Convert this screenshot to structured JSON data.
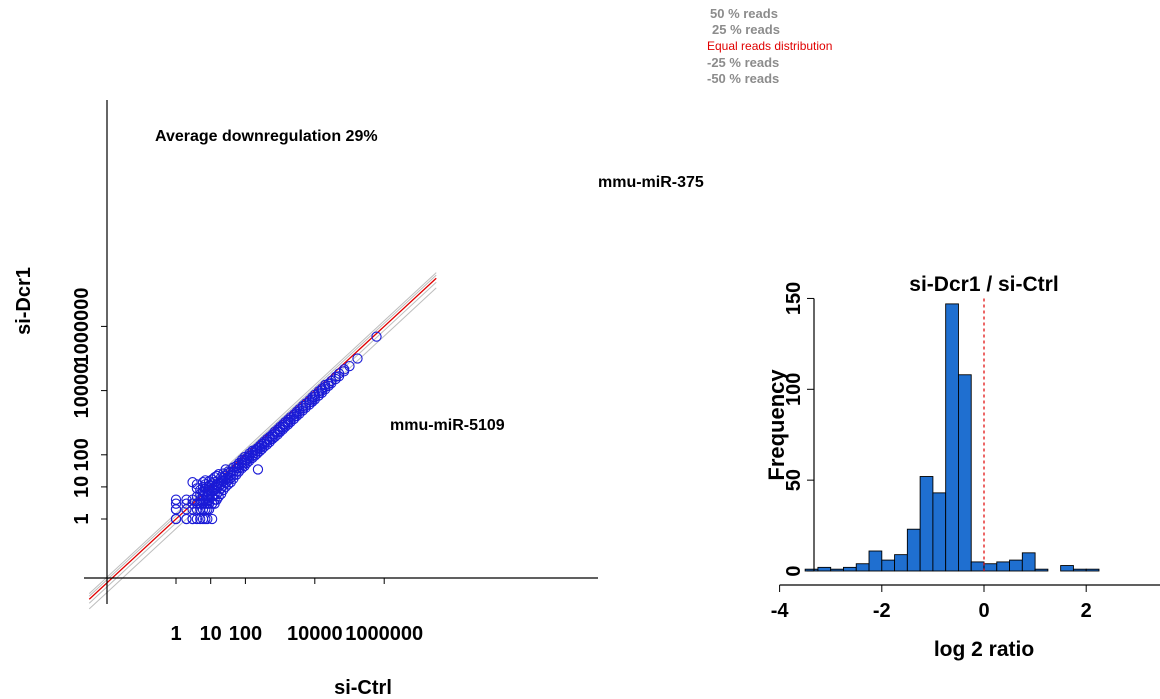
{
  "chart_data": [
    {
      "type": "scatter",
      "scale": "log10",
      "xlabel": "si-Ctrl",
      "ylabel": "si-Dcr1",
      "x_ticks": [
        1,
        10,
        100,
        10000,
        1000000
      ],
      "x_tick_labels": [
        "1",
        "10",
        "100",
        "10000",
        "1000000"
      ],
      "y_ticks": [
        1,
        10,
        100,
        10000,
        1000000
      ],
      "y_tick_labels": [
        "1",
        "10",
        "100",
        "10000",
        "1000000"
      ],
      "xlim": [
        0.03,
        5000000
      ],
      "ylim": [
        0.03,
        5000000
      ],
      "annotation": "Average downregulation 29%",
      "labels": [
        {
          "text": "mmu-miR-375",
          "x": 450000,
          "y": 280000
        },
        {
          "text": "mmu-miR-5109",
          "x": 500,
          "y": 35
        }
      ],
      "reference_lines": [
        {
          "name": "50 % reads",
          "ratio": 1.5,
          "color": "#bdbdbd"
        },
        {
          "name": "25 % reads",
          "ratio": 1.25,
          "color": "#bdbdbd"
        },
        {
          "name": "Equal reads distribution",
          "ratio": 1.0,
          "color": "#e00000"
        },
        {
          "name": "-25 % reads",
          "ratio": 0.75,
          "color": "#bdbdbd"
        },
        {
          "name": "-50 % reads",
          "ratio": 0.5,
          "color": "#bdbdbd"
        }
      ],
      "points": [
        [
          1,
          1
        ],
        [
          1,
          2
        ],
        [
          1,
          3
        ],
        [
          1,
          4
        ],
        [
          1,
          1
        ],
        [
          1,
          2
        ],
        [
          2,
          1
        ],
        [
          2,
          2
        ],
        [
          2,
          3
        ],
        [
          2,
          4
        ],
        [
          2,
          1
        ],
        [
          3,
          1
        ],
        [
          3,
          2
        ],
        [
          3,
          3
        ],
        [
          3,
          4
        ],
        [
          3,
          14
        ],
        [
          3,
          1
        ],
        [
          4,
          1
        ],
        [
          4,
          2
        ],
        [
          4,
          3
        ],
        [
          4,
          5
        ],
        [
          4,
          9
        ],
        [
          4,
          12
        ],
        [
          5,
          1
        ],
        [
          5,
          2
        ],
        [
          5,
          3
        ],
        [
          5,
          4
        ],
        [
          5,
          6
        ],
        [
          5,
          8
        ],
        [
          6,
          1
        ],
        [
          6,
          2
        ],
        [
          6,
          3
        ],
        [
          6,
          4
        ],
        [
          6,
          5
        ],
        [
          6,
          7
        ],
        [
          6,
          10
        ],
        [
          6,
          14
        ],
        [
          7,
          1
        ],
        [
          7,
          2
        ],
        [
          7,
          3
        ],
        [
          7,
          4
        ],
        [
          7,
          6
        ],
        [
          7,
          9
        ],
        [
          7,
          12
        ],
        [
          7,
          16
        ],
        [
          8,
          1
        ],
        [
          8,
          2
        ],
        [
          8,
          3
        ],
        [
          8,
          5
        ],
        [
          8,
          7
        ],
        [
          8,
          10
        ],
        [
          9,
          2
        ],
        [
          9,
          3
        ],
        [
          9,
          4
        ],
        [
          9,
          6
        ],
        [
          9,
          8
        ],
        [
          9,
          11
        ],
        [
          9,
          15
        ],
        [
          11,
          1
        ],
        [
          11,
          3
        ],
        [
          11,
          5
        ],
        [
          11,
          7
        ],
        [
          11,
          9
        ],
        [
          11,
          13
        ],
        [
          11,
          17
        ],
        [
          13,
          3
        ],
        [
          13,
          4
        ],
        [
          13,
          6
        ],
        [
          13,
          8
        ],
        [
          13,
          10
        ],
        [
          13,
          14
        ],
        [
          13,
          20
        ],
        [
          15,
          4
        ],
        [
          15,
          6
        ],
        [
          15,
          9
        ],
        [
          15,
          12
        ],
        [
          15,
          22
        ],
        [
          17,
          5
        ],
        [
          17,
          7
        ],
        [
          17,
          10
        ],
        [
          17,
          13
        ],
        [
          17,
          25
        ],
        [
          20,
          6
        ],
        [
          20,
          9
        ],
        [
          20,
          12
        ],
        [
          20,
          16
        ],
        [
          20,
          20
        ],
        [
          23,
          8
        ],
        [
          23,
          11
        ],
        [
          23,
          15
        ],
        [
          23,
          19
        ],
        [
          23,
          26
        ],
        [
          27,
          10
        ],
        [
          27,
          13
        ],
        [
          27,
          17
        ],
        [
          27,
          22
        ],
        [
          27,
          35
        ],
        [
          32,
          12
        ],
        [
          32,
          16
        ],
        [
          32,
          20
        ],
        [
          32,
          26
        ],
        [
          32,
          30
        ],
        [
          38,
          14
        ],
        [
          38,
          19
        ],
        [
          38,
          24
        ],
        [
          38,
          30
        ],
        [
          45,
          18
        ],
        [
          45,
          23
        ],
        [
          45,
          30
        ],
        [
          45,
          40
        ],
        [
          55,
          24
        ],
        [
          55,
          30
        ],
        [
          55,
          38
        ],
        [
          55,
          45
        ],
        [
          65,
          30
        ],
        [
          65,
          38
        ],
        [
          65,
          48
        ],
        [
          65,
          55
        ],
        [
          80,
          38
        ],
        [
          80,
          47
        ],
        [
          80,
          58
        ],
        [
          80,
          70
        ],
        [
          95,
          45
        ],
        [
          95,
          56
        ],
        [
          95,
          70
        ],
        [
          95,
          85
        ],
        [
          110,
          55
        ],
        [
          110,
          68
        ],
        [
          110,
          80
        ],
        [
          130,
          65
        ],
        [
          130,
          80
        ],
        [
          130,
          95
        ],
        [
          130,
          110
        ],
        [
          160,
          80
        ],
        [
          160,
          95
        ],
        [
          160,
          120
        ],
        [
          160,
          135
        ],
        [
          190,
          95
        ],
        [
          190,
          115
        ],
        [
          190,
          140
        ],
        [
          220,
          110
        ],
        [
          220,
          135
        ],
        [
          220,
          160
        ],
        [
          260,
          130
        ],
        [
          260,
          160
        ],
        [
          260,
          190
        ],
        [
          300,
          150
        ],
        [
          300,
          185
        ],
        [
          300,
          220
        ],
        [
          350,
          180
        ],
        [
          350,
          220
        ],
        [
          350,
          260
        ],
        [
          420,
          210
        ],
        [
          420,
          260
        ],
        [
          420,
          310
        ],
        [
          500,
          250
        ],
        [
          500,
          300
        ],
        [
          500,
          360
        ],
        [
          600,
          310
        ],
        [
          600,
          370
        ],
        [
          600,
          430
        ],
        [
          700,
          360
        ],
        [
          700,
          440
        ],
        [
          700,
          520
        ],
        [
          850,
          430
        ],
        [
          850,
          520
        ],
        [
          850,
          620
        ],
        [
          1000,
          520
        ],
        [
          1000,
          620
        ],
        [
          1000,
          740
        ],
        [
          1200,
          620
        ],
        [
          1200,
          740
        ],
        [
          1200,
          880
        ],
        [
          1400,
          740
        ],
        [
          1400,
          880
        ],
        [
          1400,
          1040
        ],
        [
          1700,
          880
        ],
        [
          1700,
          1050
        ],
        [
          1700,
          1250
        ],
        [
          2000,
          1050
        ],
        [
          2000,
          1250
        ],
        [
          2000,
          1480
        ],
        [
          2500,
          1300
        ],
        [
          2500,
          1550
        ],
        [
          2500,
          1800
        ],
        [
          3000,
          1600
        ],
        [
          3000,
          1900
        ],
        [
          3000,
          2200
        ],
        [
          3600,
          1900
        ],
        [
          3600,
          2250
        ],
        [
          3600,
          2650
        ],
        [
          4500,
          2400
        ],
        [
          4500,
          2800
        ],
        [
          4500,
          3300
        ],
        [
          5500,
          2950
        ],
        [
          5500,
          3400
        ],
        [
          5500,
          4000
        ],
        [
          7000,
          3700
        ],
        [
          7000,
          4300
        ],
        [
          7000,
          5000
        ],
        [
          8500,
          4500
        ],
        [
          8500,
          5300
        ],
        [
          8500,
          6200
        ],
        [
          10000,
          5300
        ],
        [
          10000,
          6300
        ],
        [
          10000,
          7400
        ],
        [
          13000,
          7000
        ],
        [
          13000,
          8200
        ],
        [
          13000,
          9500
        ],
        [
          16000,
          8500
        ],
        [
          16000,
          10000
        ],
        [
          16000,
          11500
        ],
        [
          20000,
          11000
        ],
        [
          20000,
          13000
        ],
        [
          20000,
          15000
        ],
        [
          25000,
          14000
        ],
        [
          25000,
          16500
        ],
        [
          30000,
          17000
        ],
        [
          30000,
          20000
        ],
        [
          40000,
          23000
        ],
        [
          40000,
          27000
        ],
        [
          50000,
          28000
        ],
        [
          50000,
          34000
        ],
        [
          70000,
          40000
        ],
        [
          70000,
          46000
        ],
        [
          100000,
          58000
        ],
        [
          170000,
          100000
        ],
        [
          230,
          35
        ],
        [
          600000,
          480000
        ]
      ]
    },
    {
      "type": "bar",
      "title": "si-Dcr1 / si-Ctrl",
      "xlabel": "log 2 ratio",
      "ylabel": "Frequency",
      "xlim": [
        -4,
        4
      ],
      "ylim": [
        0,
        150
      ],
      "x_ticks": [
        -4,
        -2,
        0,
        2,
        4
      ],
      "y_ticks": [
        0,
        50,
        100,
        150
      ],
      "bin_width": 0.25,
      "bin_start": -3.5,
      "values": [
        1,
        2,
        1,
        2,
        4,
        11,
        6,
        9,
        23,
        52,
        43,
        147,
        108,
        5,
        4,
        5,
        6,
        10,
        1,
        0,
        3,
        1,
        1,
        0,
        0,
        0,
        0,
        0
      ],
      "vline": 0,
      "vline_color": "#e00000",
      "bar_color": "#1f6fd0"
    }
  ]
}
